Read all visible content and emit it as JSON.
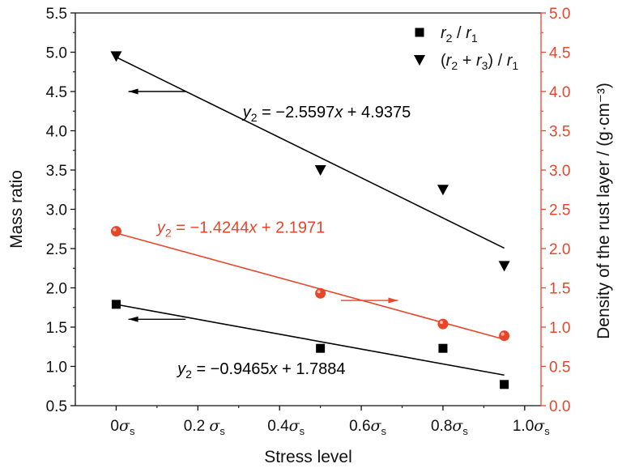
{
  "chart_data": {
    "type": "scatter",
    "xlabel": "Stress level",
    "ylabel": "Mass ratio",
    "y2label": "Density of the rust layer / (g·cm⁻³)",
    "xlim": [
      -0.1,
      1.04
    ],
    "ylim": [
      0.5,
      5.5
    ],
    "y2lim": [
      0,
      5
    ],
    "x_ticks": [
      0,
      0.2,
      0.4,
      0.6,
      0.8,
      1.0
    ],
    "x_tick_labels": [
      {
        "num": "0",
        "sym": "σ",
        "sub": "s"
      },
      {
        "num": "0.2 ",
        "sym": "σ",
        "sub": "s"
      },
      {
        "num": "0.4",
        "sym": "σ",
        "sub": "s"
      },
      {
        "num": "0.6",
        "sym": "σ",
        "sub": "s"
      },
      {
        "num": "0.8",
        "sym": "σ",
        "sub": "s"
      },
      {
        "num": "1.0",
        "sym": "σ",
        "sub": "s"
      }
    ],
    "y_ticks": [
      "0.5",
      "1.0",
      "1.5",
      "2.0",
      "2.5",
      "3.0",
      "3.5",
      "4.0",
      "4.5",
      "5.0",
      "5.5"
    ],
    "y2_ticks": [
      "0.0",
      "0.5",
      "1.0",
      "1.5",
      "2.0",
      "2.5",
      "3.0",
      "3.5",
      "4.0",
      "4.5",
      "5.0"
    ],
    "grid": false,
    "legend_position": "top-right",
    "right_axis_color": "#e8452a",
    "series": [
      {
        "name_parts": [
          [
            "r",
            "2",
            false
          ],
          [
            " / ",
            "",
            true
          ],
          [
            "r",
            "1",
            false
          ]
        ],
        "axis": "left",
        "marker": "square",
        "color": "#000000",
        "x": [
          0,
          0.5,
          0.8,
          0.95
        ],
        "y": [
          1.79,
          1.23,
          1.23,
          0.77
        ],
        "fit": {
          "slope": -0.9465,
          "intercept": 1.7884,
          "x_range": [
            0,
            0.95
          ]
        }
      },
      {
        "name_parts": [
          [
            "(",
            "",
            true
          ],
          [
            "r",
            "2",
            false
          ],
          [
            " + ",
            "",
            true
          ],
          [
            "r",
            "3",
            false
          ],
          [
            ") / ",
            "",
            true
          ],
          [
            "r",
            "1",
            false
          ]
        ],
        "axis": "left",
        "marker": "triangle-down",
        "color": "#000000",
        "x": [
          0,
          0.5,
          0.8,
          0.95
        ],
        "y": [
          4.95,
          3.5,
          3.25,
          2.28
        ],
        "fit": {
          "slope": -2.5597,
          "intercept": 4.9375,
          "x_range": [
            0,
            0.95
          ]
        }
      },
      {
        "axis": "right",
        "marker": "circle",
        "color": "#e8452a",
        "x": [
          0,
          0.5,
          0.8,
          0.95
        ],
        "y": [
          2.22,
          1.43,
          1.04,
          0.89
        ],
        "fit": {
          "slope": -1.4244,
          "intercept": 2.1971,
          "x_range": [
            0,
            0.95
          ]
        }
      }
    ],
    "annotations": [
      {
        "text_parts": [
          "y",
          "2",
          " = −2.5597",
          "x",
          " + 4.9375"
        ],
        "color": "#000000",
        "axis": "left",
        "x": 0.31,
        "y": 4.17
      },
      {
        "text_parts": [
          "y",
          "2",
          " = −1.4244",
          "x",
          " + 2.1971"
        ],
        "color": "#e8452a",
        "axis": "left",
        "x": 0.1,
        "y": 2.7
      },
      {
        "text_parts": [
          "y",
          "2",
          " = −0.9465",
          "x",
          " + 1.7884"
        ],
        "color": "#000000",
        "axis": "left",
        "x": 0.15,
        "y": 0.9
      }
    ],
    "arrows": [
      {
        "direction": "left",
        "color": "#000000",
        "axis": "left",
        "x_from": 0.17,
        "x_to": 0.03,
        "y": 4.5
      },
      {
        "direction": "right",
        "color": "#e8452a",
        "axis": "left",
        "x_from": 0.55,
        "x_to": 0.69,
        "y": 1.84
      },
      {
        "direction": "left",
        "color": "#000000",
        "axis": "left",
        "x_from": 0.17,
        "x_to": 0.03,
        "y": 1.6
      }
    ]
  }
}
